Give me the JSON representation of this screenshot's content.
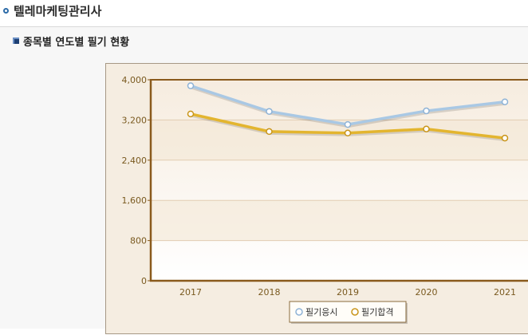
{
  "page": {
    "title": "텔레마케팅관리사",
    "section_title": "종목별 연도별 필기 현황"
  },
  "colors": {
    "series_apply": "#a9c8e4",
    "series_pass": "#e3b52f",
    "axis": "#8a5a1c",
    "tick_text": "#7a5a20"
  },
  "chart_data": {
    "type": "line",
    "title": "",
    "xlabel": "",
    "ylabel": "",
    "categories": [
      "2017",
      "2018",
      "2019",
      "2020",
      "2021"
    ],
    "ylim": [
      0,
      4000
    ],
    "yticks": [
      "0",
      "800",
      "1,600",
      "2,400",
      "3,200",
      "4,000"
    ],
    "ytick_values": [
      0,
      800,
      1600,
      2400,
      3200,
      4000
    ],
    "grid": true,
    "legend_position": "bottom",
    "series": [
      {
        "name": "필기응시",
        "values": [
          3880,
          3370,
          3110,
          3380,
          3560
        ]
      },
      {
        "name": "필기합격",
        "values": [
          3320,
          2970,
          2940,
          3020,
          2840
        ]
      }
    ]
  }
}
